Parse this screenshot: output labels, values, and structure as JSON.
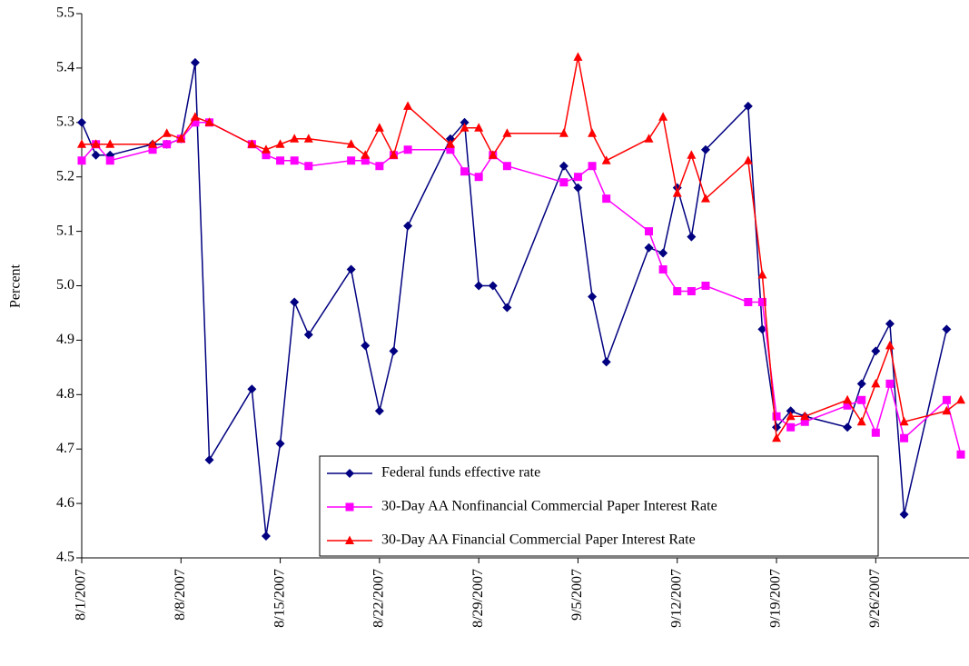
{
  "chart_data": {
    "type": "line",
    "y_label": "Percent",
    "x": [
      "8/1/2007",
      "8/2/2007",
      "8/3/2007",
      "8/6/2007",
      "8/7/2007",
      "8/8/2007",
      "8/9/2007",
      "8/10/2007",
      "8/13/2007",
      "8/14/2007",
      "8/15/2007",
      "8/16/2007",
      "8/17/2007",
      "8/20/2007",
      "8/21/2007",
      "8/22/2007",
      "8/23/2007",
      "8/24/2007",
      "8/27/2007",
      "8/28/2007",
      "8/29/2007",
      "8/30/2007",
      "8/31/2007",
      "9/4/2007",
      "9/5/2007",
      "9/6/2007",
      "9/7/2007",
      "9/10/2007",
      "9/11/2007",
      "9/12/2007",
      "9/13/2007",
      "9/14/2007",
      "9/17/2007",
      "9/18/2007",
      "9/19/2007",
      "9/20/2007",
      "9/21/2007",
      "9/24/2007",
      "9/25/2007",
      "9/26/2007",
      "9/27/2007",
      "9/28/2007",
      "10/1/2007",
      "10/2/2007"
    ],
    "series": [
      {
        "name": "Federal funds effective rate",
        "color": "#000080",
        "marker": "diamond",
        "values": [
          5.3,
          5.24,
          5.24,
          5.26,
          5.26,
          5.27,
          5.41,
          4.68,
          4.81,
          4.54,
          4.71,
          4.97,
          4.91,
          5.03,
          4.89,
          4.77,
          4.88,
          5.11,
          5.27,
          5.3,
          5.0,
          5.0,
          4.96,
          5.22,
          5.18,
          4.98,
          4.86,
          5.07,
          5.06,
          5.18,
          5.09,
          5.25,
          5.33,
          4.92,
          4.74,
          4.77,
          4.76,
          4.74,
          4.82,
          4.88,
          4.93,
          4.58,
          4.92,
          null
        ]
      },
      {
        "name": "30-Day AA Nonfinancial Commercial Paper Interest Rate",
        "color": "#ff00ff",
        "marker": "square",
        "values": [
          5.23,
          5.26,
          5.23,
          5.25,
          5.26,
          5.27,
          5.3,
          5.3,
          5.26,
          5.24,
          5.23,
          5.23,
          5.22,
          5.23,
          5.23,
          5.22,
          5.24,
          5.25,
          5.25,
          5.21,
          5.2,
          5.24,
          5.22,
          5.19,
          5.2,
          5.22,
          5.16,
          5.1,
          5.03,
          4.99,
          4.99,
          5.0,
          4.97,
          4.97,
          4.76,
          4.74,
          4.75,
          4.78,
          4.79,
          4.73,
          4.82,
          4.72,
          4.79,
          4.69
        ]
      },
      {
        "name": "30-Day AA Financial Commercial Paper Interest Rate",
        "color": "#ff0000",
        "marker": "triangle",
        "values": [
          5.26,
          5.26,
          5.26,
          5.26,
          5.28,
          5.27,
          5.31,
          5.3,
          5.26,
          5.25,
          5.26,
          5.27,
          5.27,
          5.26,
          5.24,
          5.29,
          5.24,
          5.33,
          5.26,
          5.29,
          5.29,
          5.24,
          5.28,
          5.28,
          5.42,
          5.28,
          5.23,
          5.27,
          5.31,
          5.17,
          5.24,
          5.16,
          5.23,
          5.02,
          4.72,
          4.76,
          4.76,
          4.79,
          4.75,
          4.82,
          4.89,
          4.75,
          4.77,
          4.79
        ]
      }
    ],
    "xlim": [
      "8/1/2007",
      "10/2/2007"
    ],
    "xticks": [
      "8/1/2007",
      "8/8/2007",
      "8/15/2007",
      "8/22/2007",
      "8/29/2007",
      "9/5/2007",
      "9/12/2007",
      "9/19/2007",
      "9/26/2007"
    ],
    "ylim": [
      4.5,
      5.5
    ],
    "yticks": [
      {
        "value": 4.5,
        "label": "4.5"
      },
      {
        "value": 4.6,
        "label": "4.6"
      },
      {
        "value": 4.7,
        "label": "4.7"
      },
      {
        "value": 4.8,
        "label": "4.8"
      },
      {
        "value": 4.9,
        "label": "4.9"
      },
      {
        "value": 5.0,
        "label": "5.0"
      },
      {
        "value": 5.1,
        "label": "5.1"
      },
      {
        "value": 5.2,
        "label": "5.2"
      },
      {
        "value": 5.3,
        "label": "5.3"
      },
      {
        "value": 5.4,
        "label": "5.4"
      },
      {
        "value": 5.5,
        "label": "5.5"
      }
    ],
    "grid": false,
    "legend": "bottom-right"
  }
}
